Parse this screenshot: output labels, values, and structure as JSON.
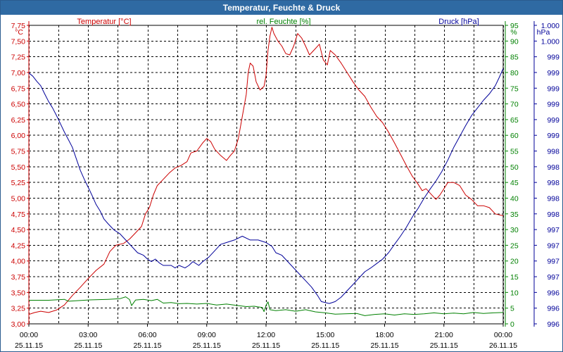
{
  "window": {
    "title": "Temperatur, Feuchte & Druck"
  },
  "colors": {
    "temperature": "#cc0000",
    "humidity": "#008000",
    "pressure": "#000099",
    "titlebar": "#2f6aa3",
    "grid": "#000000"
  },
  "chart_data": {
    "type": "line",
    "title": "Temperatur, Feuchte & Druck",
    "grid": true,
    "x_ticks": [
      {
        "time": "00:00",
        "date": "25.11.15"
      },
      {
        "time": "03:00",
        "date": "25.11.15"
      },
      {
        "time": "06:00",
        "date": "25.11.15"
      },
      {
        "time": "09:00",
        "date": "25.11.15"
      },
      {
        "time": "12:00",
        "date": "25.11.15"
      },
      {
        "time": "15:00",
        "date": "25.11.15"
      },
      {
        "time": "18:00",
        "date": "25.11.15"
      },
      {
        "time": "21:00",
        "date": "25.11.15"
      },
      {
        "time": "00:00",
        "date": "26.11.15"
      }
    ],
    "x_range_hours": [
      0,
      24
    ],
    "axes": {
      "temperature": {
        "unit": "°C",
        "label": "Temperatur [°C]",
        "range": [
          3.0,
          7.75
        ],
        "ticks": [
          "7,75",
          "7,50",
          "7,25",
          "7,00",
          "6,75",
          "6,50",
          "6,25",
          "6,00",
          "5,75",
          "5,50",
          "5,25",
          "5,00",
          "4,75",
          "4,50",
          "4,25",
          "4,00",
          "3,75",
          "3,50",
          "3,25",
          "3,00"
        ]
      },
      "humidity": {
        "unit": "%",
        "label": "rel. Feuchte [%]",
        "range": [
          0,
          95
        ],
        "ticks": [
          "95",
          "90",
          "85",
          "80",
          "75",
          "70",
          "65",
          "60",
          "55",
          "50",
          "45",
          "40",
          "35",
          "30",
          "25",
          "20",
          "15",
          "10",
          "5",
          "0"
        ]
      },
      "pressure": {
        "unit": "hPa",
        "label": "Druck [hPa]",
        "range": [
          995.6,
          1000.3
        ],
        "ticks": [
          "1.000",
          "1.000",
          "999",
          "999",
          "999",
          "999",
          "999",
          "999",
          "998",
          "998",
          "998",
          "998",
          "998",
          "997",
          "997",
          "997",
          "997",
          "996",
          "996",
          "996"
        ]
      }
    },
    "series": [
      {
        "name": "Temperatur [°C]",
        "axis": "temperature",
        "points": [
          [
            0,
            3.15
          ],
          [
            0.3,
            3.18
          ],
          [
            0.6,
            3.2
          ],
          [
            1.0,
            3.18
          ],
          [
            1.4,
            3.22
          ],
          [
            1.8,
            3.3
          ],
          [
            2.2,
            3.45
          ],
          [
            2.6,
            3.58
          ],
          [
            3.0,
            3.72
          ],
          [
            3.4,
            3.85
          ],
          [
            3.8,
            3.95
          ],
          [
            4.1,
            4.15
          ],
          [
            4.4,
            4.25
          ],
          [
            4.8,
            4.28
          ],
          [
            5.1,
            4.35
          ],
          [
            5.4,
            4.45
          ],
          [
            5.7,
            4.55
          ],
          [
            5.9,
            4.75
          ],
          [
            6.1,
            4.85
          ],
          [
            6.3,
            5.05
          ],
          [
            6.5,
            5.2
          ],
          [
            6.8,
            5.3
          ],
          [
            7.1,
            5.4
          ],
          [
            7.4,
            5.48
          ],
          [
            7.7,
            5.52
          ],
          [
            8.0,
            5.58
          ],
          [
            8.2,
            5.72
          ],
          [
            8.5,
            5.75
          ],
          [
            8.8,
            5.88
          ],
          [
            9.0,
            5.95
          ],
          [
            9.2,
            5.9
          ],
          [
            9.4,
            5.78
          ],
          [
            9.7,
            5.68
          ],
          [
            10.0,
            5.6
          ],
          [
            10.2,
            5.68
          ],
          [
            10.4,
            5.75
          ],
          [
            10.6,
            5.95
          ],
          [
            10.8,
            6.3
          ],
          [
            11.0,
            6.65
          ],
          [
            11.1,
            7.0
          ],
          [
            11.2,
            7.15
          ],
          [
            11.35,
            7.1
          ],
          [
            11.5,
            6.85
          ],
          [
            11.7,
            6.72
          ],
          [
            11.9,
            6.78
          ],
          [
            12.0,
            6.95
          ],
          [
            12.1,
            7.35
          ],
          [
            12.2,
            7.58
          ],
          [
            12.3,
            7.72
          ],
          [
            12.4,
            7.62
          ],
          [
            12.6,
            7.5
          ],
          [
            12.8,
            7.42
          ],
          [
            13.0,
            7.3
          ],
          [
            13.2,
            7.28
          ],
          [
            13.4,
            7.42
          ],
          [
            13.6,
            7.62
          ],
          [
            13.8,
            7.55
          ],
          [
            14.0,
            7.42
          ],
          [
            14.2,
            7.28
          ],
          [
            14.5,
            7.38
          ],
          [
            14.7,
            7.45
          ],
          [
            14.9,
            7.2
          ],
          [
            15.1,
            7.12
          ],
          [
            15.25,
            7.35
          ],
          [
            15.5,
            7.28
          ],
          [
            15.8,
            7.15
          ],
          [
            16.1,
            7.0
          ],
          [
            16.4,
            6.85
          ],
          [
            16.7,
            6.72
          ],
          [
            17.0,
            6.62
          ],
          [
            17.3,
            6.45
          ],
          [
            17.6,
            6.3
          ],
          [
            17.9,
            6.2
          ],
          [
            18.2,
            6.05
          ],
          [
            18.5,
            5.88
          ],
          [
            18.8,
            5.7
          ],
          [
            19.1,
            5.52
          ],
          [
            19.4,
            5.35
          ],
          [
            19.7,
            5.22
          ],
          [
            19.9,
            5.12
          ],
          [
            20.1,
            5.15
          ],
          [
            20.3,
            5.08
          ],
          [
            20.6,
            4.98
          ],
          [
            20.8,
            5.05
          ],
          [
            21.0,
            5.15
          ],
          [
            21.2,
            5.25
          ],
          [
            21.5,
            5.25
          ],
          [
            21.8,
            5.2
          ],
          [
            22.1,
            5.05
          ],
          [
            22.4,
            4.98
          ],
          [
            22.7,
            4.88
          ],
          [
            23.0,
            4.88
          ],
          [
            23.3,
            4.85
          ],
          [
            23.6,
            4.75
          ],
          [
            24.0,
            4.72
          ]
        ]
      },
      {
        "name": "rel. Feuchte [%]",
        "axis": "humidity",
        "points": [
          [
            0,
            7.5
          ],
          [
            1.0,
            7.5
          ],
          [
            1.8,
            7.8
          ],
          [
            2.0,
            7.2
          ],
          [
            3.0,
            7.6
          ],
          [
            4.0,
            7.8
          ],
          [
            4.6,
            8.0
          ],
          [
            4.9,
            8.6
          ],
          [
            5.1,
            7.7
          ],
          [
            5.2,
            5.8
          ],
          [
            5.4,
            7.6
          ],
          [
            5.8,
            7.8
          ],
          [
            6.2,
            7.4
          ],
          [
            6.5,
            7.8
          ],
          [
            6.8,
            6.6
          ],
          [
            7.2,
            6.8
          ],
          [
            7.6,
            6.4
          ],
          [
            8.0,
            6.5
          ],
          [
            8.5,
            6.3
          ],
          [
            9.0,
            6.5
          ],
          [
            9.5,
            6.0
          ],
          [
            10.0,
            6.3
          ],
          [
            10.6,
            5.8
          ],
          [
            11.0,
            5.5
          ],
          [
            11.4,
            5.6
          ],
          [
            11.8,
            5.2
          ],
          [
            11.9,
            3.9
          ],
          [
            12.0,
            5.9
          ],
          [
            12.1,
            7.0
          ],
          [
            12.2,
            4.5
          ],
          [
            12.5,
            4.2
          ],
          [
            13.0,
            4.5
          ],
          [
            13.5,
            4.0
          ],
          [
            14.0,
            4.5
          ],
          [
            14.5,
            3.8
          ],
          [
            15.0,
            3.5
          ],
          [
            15.5,
            3.1
          ],
          [
            16.0,
            3.2
          ],
          [
            16.6,
            3.3
          ],
          [
            17.0,
            2.6
          ],
          [
            17.5,
            3.0
          ],
          [
            18.0,
            3.2
          ],
          [
            18.5,
            2.8
          ],
          [
            19.0,
            3.2
          ],
          [
            19.5,
            3.0
          ],
          [
            20.0,
            3.2
          ],
          [
            20.5,
            3.5
          ],
          [
            21.0,
            3.2
          ],
          [
            21.5,
            3.4
          ],
          [
            22.0,
            3.2
          ],
          [
            22.5,
            3.6
          ],
          [
            23.0,
            3.3
          ],
          [
            23.5,
            3.5
          ],
          [
            24.0,
            3.6
          ]
        ]
      },
      {
        "name": "Druck [hPa]",
        "axis": "pressure",
        "points": [
          [
            0,
            999.55
          ],
          [
            0.2,
            999.5
          ],
          [
            0.4,
            999.42
          ],
          [
            0.6,
            999.35
          ],
          [
            0.8,
            999.22
          ],
          [
            1.0,
            999.1
          ],
          [
            1.2,
            999.0
          ],
          [
            1.4,
            998.88
          ],
          [
            1.6,
            998.75
          ],
          [
            1.8,
            998.62
          ],
          [
            2.0,
            998.5
          ],
          [
            2.2,
            998.38
          ],
          [
            2.4,
            998.2
          ],
          [
            2.6,
            998.02
          ],
          [
            2.8,
            997.88
          ],
          [
            3.0,
            997.75
          ],
          [
            3.2,
            997.62
          ],
          [
            3.4,
            997.48
          ],
          [
            3.6,
            997.38
          ],
          [
            3.8,
            997.25
          ],
          [
            4.0,
            997.18
          ],
          [
            4.3,
            997.08
          ],
          [
            4.6,
            997.02
          ],
          [
            4.9,
            996.92
          ],
          [
            5.2,
            996.82
          ],
          [
            5.5,
            996.72
          ],
          [
            5.8,
            996.68
          ],
          [
            6.0,
            996.62
          ],
          [
            6.2,
            996.58
          ],
          [
            6.4,
            996.62
          ],
          [
            6.6,
            996.56
          ],
          [
            6.8,
            996.52
          ],
          [
            7.2,
            996.52
          ],
          [
            7.4,
            996.48
          ],
          [
            7.6,
            996.52
          ],
          [
            7.9,
            996.48
          ],
          [
            8.1,
            996.52
          ],
          [
            8.3,
            996.58
          ],
          [
            8.6,
            996.52
          ],
          [
            8.8,
            996.58
          ],
          [
            9.1,
            996.65
          ],
          [
            9.4,
            996.75
          ],
          [
            9.7,
            996.85
          ],
          [
            10.0,
            996.88
          ],
          [
            10.4,
            996.92
          ],
          [
            10.8,
            996.98
          ],
          [
            11.2,
            996.92
          ],
          [
            11.6,
            996.92
          ],
          [
            12.0,
            996.88
          ],
          [
            12.3,
            996.82
          ],
          [
            12.5,
            996.72
          ],
          [
            12.8,
            996.68
          ],
          [
            13.1,
            996.58
          ],
          [
            13.4,
            996.48
          ],
          [
            13.7,
            996.38
          ],
          [
            14.0,
            996.28
          ],
          [
            14.3,
            996.18
          ],
          [
            14.6,
            996.05
          ],
          [
            14.8,
            995.95
          ],
          [
            15.2,
            995.92
          ],
          [
            15.5,
            995.95
          ],
          [
            15.8,
            996.02
          ],
          [
            16.1,
            996.12
          ],
          [
            16.4,
            996.22
          ],
          [
            16.7,
            996.32
          ],
          [
            17.0,
            996.42
          ],
          [
            17.3,
            996.48
          ],
          [
            17.6,
            996.55
          ],
          [
            17.9,
            996.62
          ],
          [
            18.2,
            996.72
          ],
          [
            18.5,
            996.85
          ],
          [
            18.8,
            996.98
          ],
          [
            19.1,
            997.12
          ],
          [
            19.4,
            997.28
          ],
          [
            19.7,
            997.42
          ],
          [
            20.0,
            997.58
          ],
          [
            20.3,
            997.72
          ],
          [
            20.6,
            997.85
          ],
          [
            20.9,
            998.0
          ],
          [
            21.2,
            998.18
          ],
          [
            21.5,
            998.38
          ],
          [
            21.8,
            998.55
          ],
          [
            22.1,
            998.72
          ],
          [
            22.4,
            998.88
          ],
          [
            22.7,
            999.0
          ],
          [
            23.0,
            999.12
          ],
          [
            23.3,
            999.22
          ],
          [
            23.6,
            999.35
          ],
          [
            23.8,
            999.48
          ],
          [
            24.0,
            999.62
          ]
        ]
      }
    ]
  }
}
